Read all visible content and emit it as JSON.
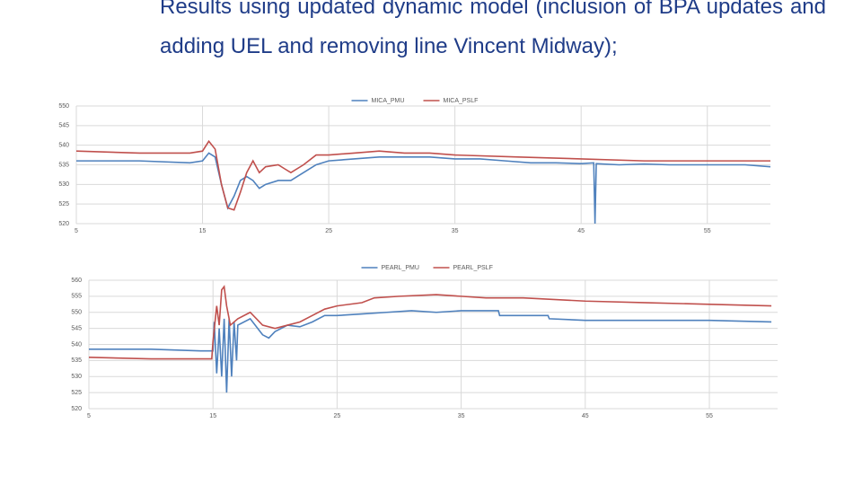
{
  "heading": "Results using updated dynamic model (inclusion of BPA updates and adding UEL and removing line Vincent Midway);",
  "chart_data": [
    {
      "type": "line",
      "series": [
        {
          "name": "MICA_PMU",
          "color": "#4f81bd",
          "x": [
            5,
            10,
            14,
            15,
            15.5,
            16,
            16.5,
            17,
            17.5,
            18,
            18.5,
            19,
            19.5,
            20,
            21,
            22,
            23,
            24,
            25,
            27,
            29,
            31,
            33,
            35,
            37,
            39,
            41,
            43,
            45,
            46,
            46.1,
            46.2,
            48,
            50,
            52,
            55,
            58,
            60
          ],
          "values": [
            536,
            536,
            535.5,
            536,
            538,
            537,
            530,
            524,
            527,
            531,
            532,
            531,
            529,
            530,
            531,
            531,
            533,
            535,
            536,
            536.5,
            537,
            537,
            537,
            536.5,
            536.5,
            536,
            535.5,
            535.5,
            535.3,
            535.5,
            520,
            535.3,
            535,
            535.2,
            535,
            535,
            535,
            534.5
          ]
        },
        {
          "name": "MICA_PSLF",
          "color": "#c0504d",
          "x": [
            5,
            10,
            14,
            15,
            15.5,
            16,
            16.5,
            17,
            17.5,
            18,
            18.5,
            19,
            19.5,
            20,
            21,
            21.5,
            22,
            23,
            24,
            25,
            27,
            29,
            31,
            33,
            35,
            40,
            45,
            50,
            55,
            60
          ],
          "values": [
            538.5,
            538,
            538,
            538.5,
            541,
            539,
            530,
            524,
            523.5,
            528,
            533,
            536,
            533,
            534.5,
            535,
            534,
            533,
            535,
            537.5,
            537.5,
            538,
            538.5,
            538,
            538,
            537.5,
            537,
            536.5,
            536,
            536,
            536
          ]
        }
      ],
      "xlim": [
        5,
        60
      ],
      "xticks": [
        5,
        15,
        25,
        35,
        45,
        55
      ],
      "ylim": [
        520,
        550
      ],
      "yticks": [
        520,
        525,
        530,
        535,
        540,
        545,
        550
      ],
      "grid": true
    },
    {
      "type": "line",
      "series": [
        {
          "name": "PEARL_PMU",
          "color": "#4f81bd",
          "x": [
            5,
            10,
            14,
            15,
            15.1,
            15.3,
            15.5,
            15.7,
            15.9,
            16.1,
            16.3,
            16.5,
            16.7,
            16.9,
            17,
            18,
            19,
            19.5,
            20,
            21,
            22,
            23,
            24,
            25,
            27,
            29,
            31,
            33,
            35,
            37,
            38,
            38.1,
            40,
            42,
            42.1,
            45,
            50,
            55,
            60
          ],
          "values": [
            538.5,
            538.5,
            538,
            538,
            547,
            531,
            545,
            530,
            548,
            525,
            548,
            530,
            547,
            535,
            546,
            548,
            543,
            542,
            544,
            546,
            545.5,
            547,
            549,
            549,
            549.5,
            550,
            550.5,
            550,
            550.5,
            550.5,
            550.5,
            549,
            549,
            549,
            548,
            547.5,
            547.5,
            547.5,
            547
          ]
        },
        {
          "name": "PEARL_PSLF",
          "color": "#c0504d",
          "x": [
            5,
            10,
            14.9,
            15,
            15.3,
            15.5,
            15.7,
            15.9,
            16.1,
            16.4,
            17,
            18,
            19,
            20,
            21,
            22,
            23,
            24,
            25,
            27,
            28,
            30,
            33,
            35,
            37,
            40,
            45,
            50,
            55,
            60
          ],
          "values": [
            536,
            535.5,
            535.5,
            541,
            552,
            546,
            557,
            558,
            552,
            546,
            548,
            550,
            546,
            545,
            546,
            547,
            549,
            551,
            552,
            553,
            554.5,
            555,
            555.5,
            555,
            554.5,
            554.5,
            553.5,
            553,
            552.5,
            552
          ]
        }
      ],
      "xlim": [
        5,
        60.5
      ],
      "xticks": [
        5,
        15,
        25,
        35,
        45,
        55
      ],
      "ylim": [
        520,
        560
      ],
      "yticks": [
        520,
        525,
        530,
        535,
        540,
        545,
        550,
        555,
        560
      ],
      "grid": true
    }
  ]
}
